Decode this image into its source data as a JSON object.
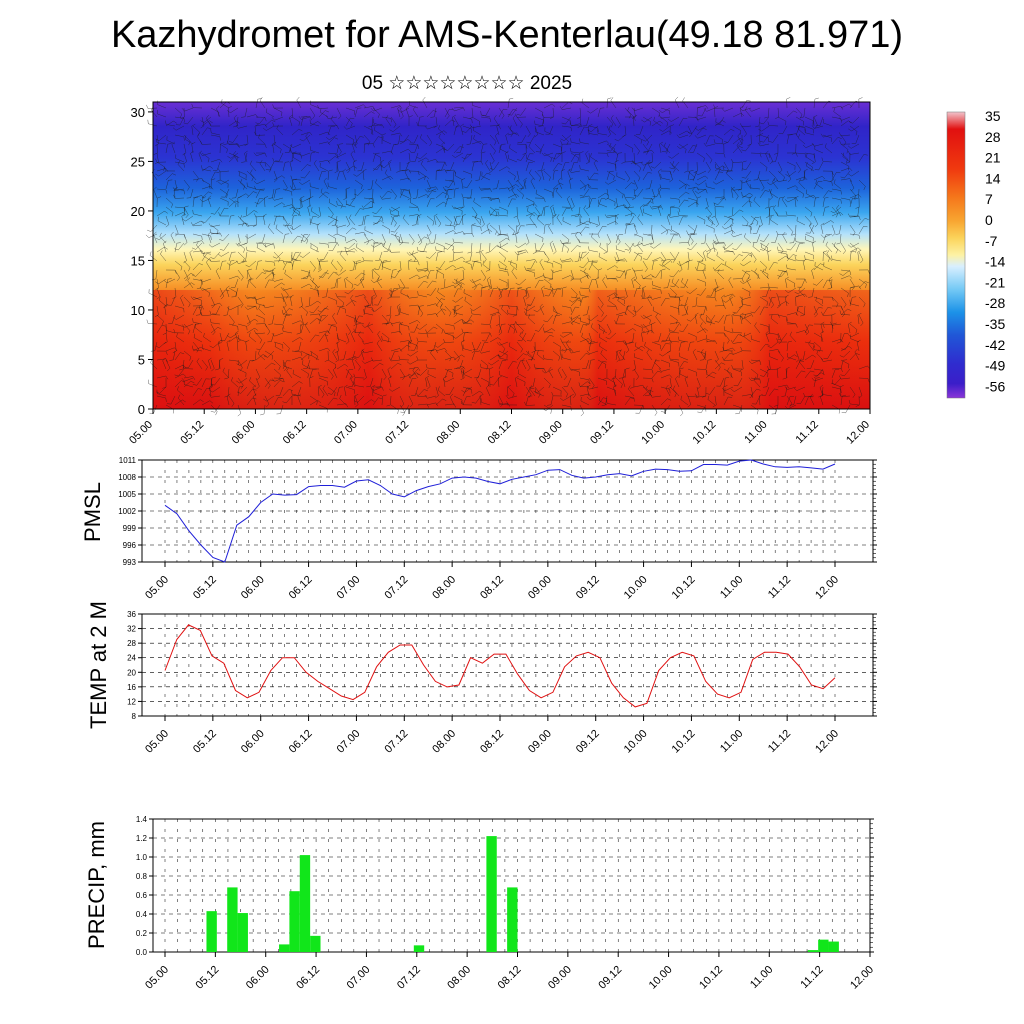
{
  "header": {
    "title": "Kazhydromet for AMS-Kenterlau(49.18 81.971)",
    "subtitle": "05 ☆☆☆☆☆☆☆☆ 2025"
  },
  "x_ticks": [
    "05.00",
    "05.12",
    "06.00",
    "06.12",
    "07.00",
    "07.12",
    "08.00",
    "08.12",
    "09.00",
    "09.12",
    "10.00",
    "10.12",
    "11.00",
    "11.12",
    "12.00"
  ],
  "colorbar": {
    "labels": [
      "35",
      "28",
      "21",
      "14",
      "7",
      "0",
      "-7",
      "-14",
      "-21",
      "-28",
      "-35",
      "-42",
      "-49",
      "-56"
    ],
    "colors": [
      "#f2c4cc",
      "#e11010",
      "#f03a0f",
      "#f5781b",
      "#f8a531",
      "#fbd35a",
      "#fdf2a4",
      "#d8efff",
      "#74c9f5",
      "#1c92e8",
      "#2057d7",
      "#2f2ccf",
      "#3b1ec9",
      "#8a35d8"
    ]
  },
  "chart_data": [
    {
      "type": "heatmap",
      "title": "",
      "ylabel": "",
      "xlabel": "",
      "yticks": [
        0,
        5,
        10,
        15,
        20,
        25,
        30
      ],
      "ylim": [
        0,
        31
      ],
      "x": [
        "05.00",
        "05.12",
        "06.00",
        "06.12",
        "07.00",
        "07.12",
        "08.00",
        "08.12",
        "09.00",
        "09.12",
        "10.00",
        "10.12",
        "11.00",
        "11.12",
        "12.00"
      ],
      "value_range": [
        -56,
        35
      ],
      "description_values": "temperature vs height with wind barbs"
    },
    {
      "type": "line",
      "ylabel": "PMSL",
      "ylim": [
        993,
        1011
      ],
      "yticks": [
        993,
        996,
        999,
        1002,
        1005,
        1008,
        1011
      ],
      "color": "#1f1fd8",
      "values": [
        1003,
        1001.5,
        998.5,
        996,
        993.8,
        993,
        999.5,
        1001,
        1003.5,
        1005,
        1004.8,
        1004.9,
        1006.3,
        1006.5,
        1006.5,
        1006.2,
        1007.3,
        1007.5,
        1006.5,
        1005,
        1004.5,
        1005.6,
        1006.3,
        1006.8,
        1007.8,
        1008,
        1007.8,
        1007.2,
        1006.8,
        1007.6,
        1008,
        1008.4,
        1009.2,
        1009.3,
        1008.3,
        1007.8,
        1008,
        1008.4,
        1008.6,
        1008.2,
        1009,
        1009.4,
        1009.3,
        1009,
        1009.1,
        1010.2,
        1010.2,
        1010.1,
        1010.8,
        1011,
        1010.3,
        1009.8,
        1009.7,
        1009.8,
        1009.6,
        1009.4,
        1010.3
      ]
    },
    {
      "type": "line",
      "ylabel": "TEMP at 2 M",
      "ylim": [
        8,
        36
      ],
      "yticks": [
        8,
        12,
        16,
        20,
        24,
        28,
        32,
        36
      ],
      "color": "#e01010",
      "values": [
        20.5,
        29,
        33,
        31.5,
        24.5,
        22.5,
        15,
        13,
        14.5,
        20.5,
        24,
        24,
        20,
        17.5,
        15.5,
        13.5,
        12.5,
        14.5,
        21.5,
        25.5,
        27.5,
        27.5,
        22,
        17.5,
        16,
        16.5,
        24,
        22.5,
        25,
        25,
        19.5,
        15,
        13,
        14.5,
        21.5,
        24.5,
        25.5,
        24,
        17,
        13,
        10.5,
        11.5,
        20.5,
        24,
        25.5,
        24.5,
        17.5,
        14,
        13,
        14.5,
        23.5,
        25.5,
        25.5,
        25,
        21.5,
        16.5,
        15.5,
        18.5
      ]
    },
    {
      "type": "bar",
      "ylabel": "PRECIP, mm",
      "ylim": [
        0,
        1.4
      ],
      "yticks": [
        "0.0",
        "0.2",
        "0.4",
        "0.6",
        "0.8",
        "1.0",
        "1.2",
        "1.4"
      ],
      "color": "#11e61a",
      "values": [
        0,
        0,
        0,
        0,
        0.43,
        0,
        0.68,
        0.41,
        0,
        0,
        0,
        0.08,
        0.64,
        1.02,
        0.17,
        0,
        0,
        0,
        0,
        0,
        0,
        0,
        0,
        0,
        0.07,
        0,
        0,
        0,
        0,
        0,
        0,
        1.22,
        0,
        0.68,
        0,
        0,
        0,
        0,
        0,
        0,
        0,
        0,
        0,
        0,
        0,
        0,
        0,
        0,
        0,
        0,
        0,
        0,
        0,
        0,
        0,
        0,
        0,
        0,
        0,
        0,
        0,
        0,
        0.02,
        0.13,
        0.11,
        0,
        0,
        0
      ]
    }
  ]
}
